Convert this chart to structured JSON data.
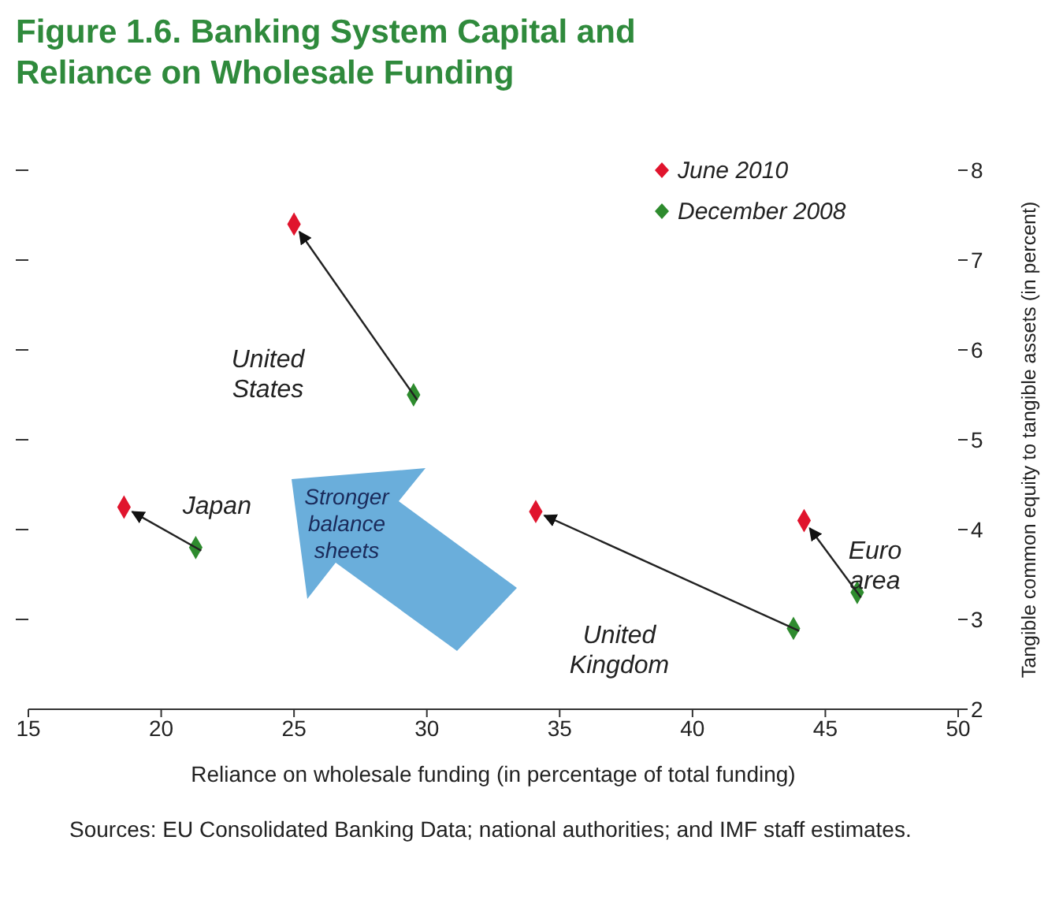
{
  "chart_data": {
    "type": "scatter",
    "title": "Figure 1.6. Banking System Capital and Reliance on Wholesale Funding",
    "xlabel": "Reliance on wholesale funding (in percentage of total funding)",
    "ylabel": "Tangible common equity to tangible assets (in percent)",
    "series": [
      {
        "name": "June 2010",
        "color": "#e0142d",
        "x": [
          25,
          18.6,
          34.1,
          44.2
        ],
        "values": [
          7.4,
          4.25,
          4.2,
          4.1
        ]
      },
      {
        "name": "December 2008",
        "color": "#2e8b2e",
        "x": [
          29.5,
          21.3,
          43.8,
          46.2
        ],
        "values": [
          5.5,
          3.8,
          2.9,
          3.3
        ]
      }
    ],
    "annotations": [
      "United States",
      {
        "text": "Japan",
        "x": 18.6,
        "y": 4.25
      },
      "United Kingdom",
      {
        "text": "Euro area",
        "x": 44.2,
        "y": 4.1
      },
      "Stronger balance sheets",
      "Sources: EU Consolidated Banking Data; national authorities; and IMF staff estimates."
    ],
    "xlim": [
      15,
      50
    ],
    "xticks": [
      15,
      20,
      25,
      30,
      35,
      40,
      45,
      50
    ],
    "ylim": [
      2,
      8
    ],
    "yticks": [
      2,
      3,
      4,
      5,
      6,
      7,
      8
    ],
    "legend": "top right",
    "marker": "diamond",
    "grid": false
  }
}
